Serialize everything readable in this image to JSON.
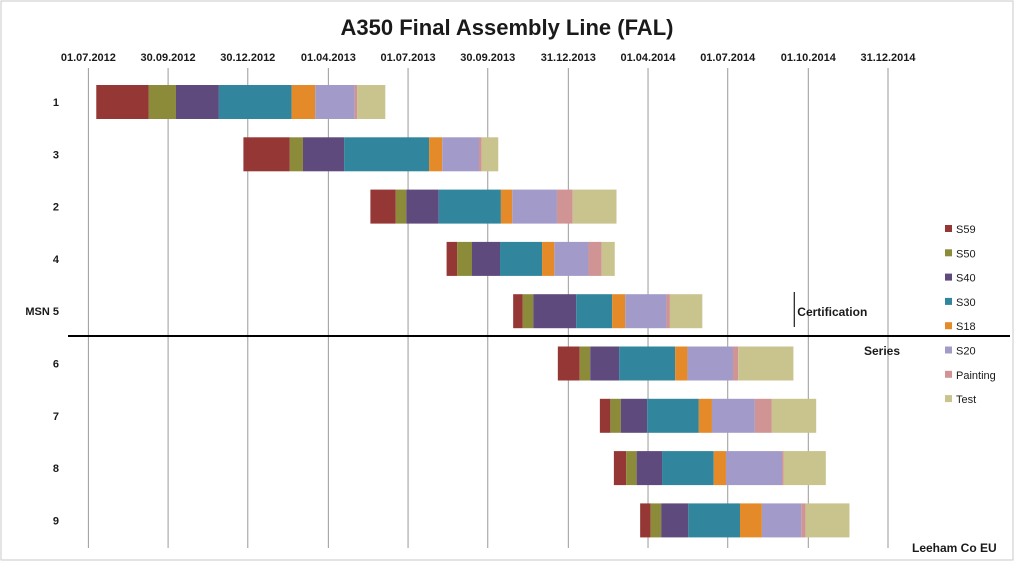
{
  "chart_data": {
    "type": "bar",
    "subtype": "gantt-stacked-horizontal",
    "title": "A350 Final Assembly Line (FAL)",
    "x_axis_position": "top",
    "xlim": [
      "2012-06-10",
      "2014-12-31"
    ],
    "x_ticks": [
      {
        "date": "2012-07-01",
        "label": "01.07.2012"
      },
      {
        "date": "2012-09-30",
        "label": "30.09.2012"
      },
      {
        "date": "2012-12-30",
        "label": "30.12.2012"
      },
      {
        "date": "2013-04-01",
        "label": "01.04.2013"
      },
      {
        "date": "2013-07-01",
        "label": "01.07.2013"
      },
      {
        "date": "2013-09-30",
        "label": "30.09.2013"
      },
      {
        "date": "2013-12-31",
        "label": "31.12.2013"
      },
      {
        "date": "2014-04-01",
        "label": "01.04.2014"
      },
      {
        "date": "2014-07-01",
        "label": "01.07.2014"
      },
      {
        "date": "2014-10-01",
        "label": "01.10.2014"
      },
      {
        "date": "2014-12-31",
        "label": "31.12.2014"
      }
    ],
    "series": [
      {
        "name": "S59",
        "color": "#953735"
      },
      {
        "name": "S50",
        "color": "#8B8B3A"
      },
      {
        "name": "S40",
        "color": "#5E4A7C"
      },
      {
        "name": "S30",
        "color": "#31859C"
      },
      {
        "name": "S18",
        "color": "#E48A29"
      },
      {
        "name": "S20",
        "color": "#A29BC9"
      },
      {
        "name": "Painting",
        "color": "#D09494"
      },
      {
        "name": "Test",
        "color": "#C9C38E"
      }
    ],
    "categories": [
      {
        "label": "1",
        "start": "2012-07-10",
        "durations_days": [
          60,
          31,
          49,
          83,
          27,
          45,
          3,
          32
        ]
      },
      {
        "label": "3",
        "start": "2012-12-25",
        "durations_days": [
          53,
          15,
          47,
          97,
          15,
          42,
          3,
          19
        ]
      },
      {
        "label": "2",
        "start": "2013-05-19",
        "durations_days": [
          29,
          12,
          37,
          71,
          13,
          51,
          18,
          50
        ]
      },
      {
        "label": "4",
        "start": "2013-08-14",
        "durations_days": [
          12,
          17,
          32,
          48,
          14,
          39,
          15,
          15
        ]
      },
      {
        "label": "MSN  5",
        "start": "2013-10-29",
        "durations_days": [
          11,
          12,
          49,
          41,
          15,
          47,
          4,
          37
        ]
      },
      {
        "label": "6",
        "start": "2013-12-19",
        "durations_days": [
          25,
          12,
          33,
          64,
          14,
          52,
          6,
          63
        ]
      },
      {
        "label": "7",
        "start": "2014-02-05",
        "durations_days": [
          12,
          12,
          30,
          59,
          15,
          49,
          19,
          51
        ]
      },
      {
        "label": "8",
        "start": "2014-02-21",
        "durations_days": [
          14,
          12,
          29,
          59,
          14,
          64,
          2,
          48
        ]
      },
      {
        "label": "9",
        "start": "2014-03-23",
        "durations_days": [
          12,
          12,
          31,
          59,
          25,
          45,
          5,
          50
        ]
      }
    ],
    "divider_after_category": "MSN  5",
    "annotations": {
      "certification": {
        "text": "Certification",
        "date": "2014-09-15"
      },
      "series": {
        "text": "Series"
      }
    },
    "legend_position": "right",
    "credit": "Leeham Co EU"
  }
}
